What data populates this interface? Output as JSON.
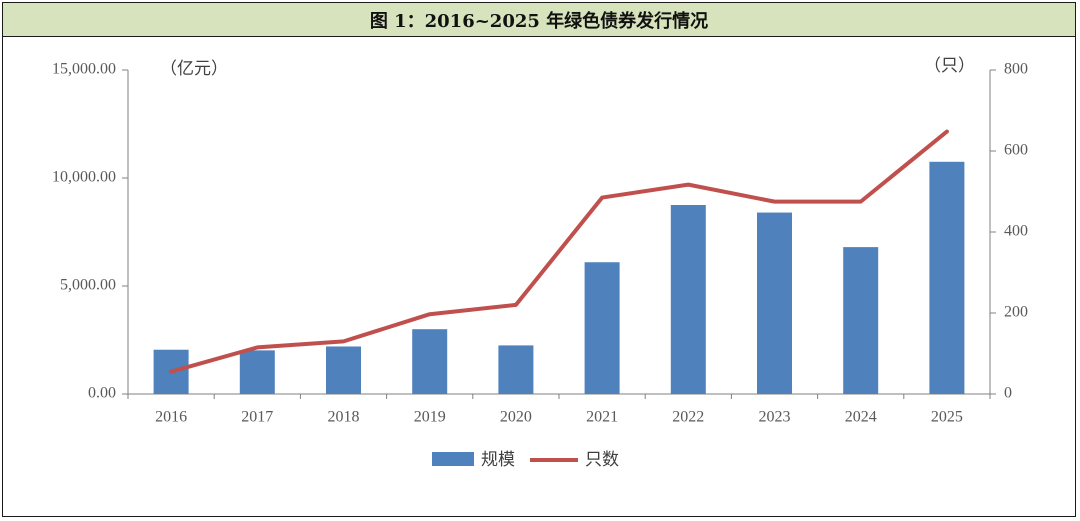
{
  "title": "图 1：2016~2025 年绿色债券发行情况",
  "chart_data": {
    "type": "bar+line",
    "categories": [
      "2016",
      "2017",
      "2018",
      "2019",
      "2020",
      "2021",
      "2022",
      "2023",
      "2024",
      "2025"
    ],
    "series": [
      {
        "name": "规模",
        "type": "bar",
        "axis": "left",
        "color": "#4f81bd",
        "values": [
          2050,
          2020,
          2200,
          3000,
          2250,
          6100,
          8750,
          8400,
          6800,
          10750
        ]
      },
      {
        "name": "只数",
        "type": "line",
        "axis": "right",
        "color": "#c0504d",
        "values": [
          55,
          115,
          130,
          197,
          220,
          485,
          517,
          475,
          475,
          648
        ]
      }
    ],
    "left_axis": {
      "unit": "（亿元）",
      "ylim": [
        0,
        15000
      ],
      "ticks": [
        "0.00",
        "5,000.00",
        "10,000.00",
        "15,000.00"
      ]
    },
    "right_axis": {
      "unit": "（只）",
      "ylim": [
        0,
        800
      ],
      "ticks": [
        "0",
        "200",
        "400",
        "600",
        "800"
      ]
    },
    "legend": {
      "position": "bottom",
      "items": [
        "规模",
        "只数"
      ]
    },
    "grid": false
  }
}
